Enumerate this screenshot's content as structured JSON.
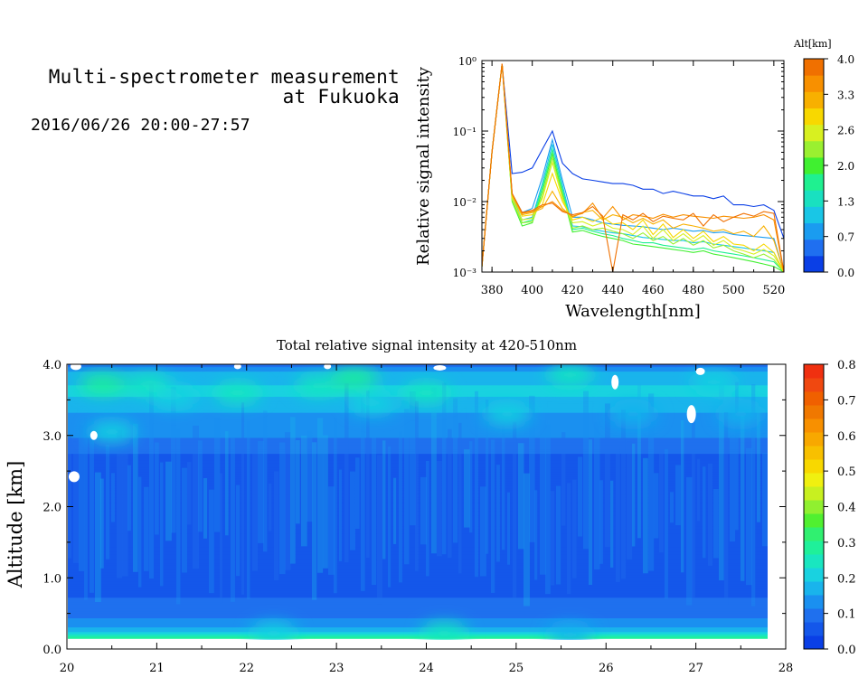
{
  "header": {
    "title_line1": "Multi-spectrometer measurement",
    "title_line2": "at Fukuoka",
    "date_range": "2016/06/26 20:00-27:57"
  },
  "chart_data": [
    {
      "type": "line",
      "xlabel": "Wavelength[nm]",
      "ylabel": "Relative signal intensity",
      "xlim": [
        375,
        525
      ],
      "ylim": [
        0.001,
        1
      ],
      "yscale": "log",
      "x_ticks": [
        "380",
        "400",
        "420",
        "440",
        "460",
        "480",
        "500",
        "520"
      ],
      "y_ticks": [
        "10⁻³",
        "10⁻²",
        "10⁻¹",
        "10⁰"
      ],
      "x": [
        375,
        380,
        385,
        390,
        395,
        400,
        405,
        410,
        415,
        420,
        425,
        430,
        435,
        440,
        445,
        450,
        455,
        460,
        465,
        470,
        475,
        480,
        485,
        490,
        495,
        500,
        505,
        510,
        515,
        520,
        525
      ],
      "colorbar": {
        "title": "Alt[km]",
        "ticks": [
          "0.0",
          "0.7",
          "1.3",
          "2.0",
          "2.6",
          "3.3",
          "4.0"
        ],
        "colors": [
          "#0a3fe6",
          "#1f6ff0",
          "#1a9cf0",
          "#19c6e6",
          "#19e0c0",
          "#1ff090",
          "#40f030",
          "#9af030",
          "#d8f020",
          "#f8d800",
          "#f8b000",
          "#f89000",
          "#f07000"
        ]
      },
      "series": [
        {
          "color": "#0a3fe6",
          "values": [
            0.0012,
            0.05,
            0.9,
            0.025,
            0.026,
            0.03,
            0.055,
            0.1,
            0.035,
            0.025,
            0.021,
            0.02,
            0.019,
            0.018,
            0.018,
            0.017,
            0.015,
            0.015,
            0.013,
            0.014,
            0.013,
            0.012,
            0.012,
            0.011,
            0.012,
            0.009,
            0.009,
            0.0085,
            0.009,
            0.0075,
            0.003
          ]
        },
        {
          "color": "#1a9cf0",
          "values": [
            0.0012,
            0.05,
            0.9,
            0.013,
            0.007,
            0.008,
            0.022,
            0.075,
            0.02,
            0.006,
            0.006,
            0.0055,
            0.005,
            0.0048,
            0.0046,
            0.0045,
            0.0044,
            0.0042,
            0.004,
            0.0042,
            0.004,
            0.0038,
            0.0039,
            0.0036,
            0.0037,
            0.0034,
            0.0033,
            0.0032,
            0.0031,
            0.003,
            0.001
          ]
        },
        {
          "color": "#19c6e6",
          "values": [
            0.0012,
            0.05,
            0.9,
            0.012,
            0.0055,
            0.006,
            0.018,
            0.065,
            0.017,
            0.0045,
            0.0044,
            0.004,
            0.0038,
            0.0036,
            0.0035,
            0.0033,
            0.0031,
            0.003,
            0.0029,
            0.0028,
            0.0028,
            0.0026,
            0.0027,
            0.0025,
            0.0024,
            0.0023,
            0.0022,
            0.0021,
            0.002,
            0.0019,
            0.001
          ]
        },
        {
          "color": "#1ff090",
          "values": [
            0.0012,
            0.05,
            0.9,
            0.011,
            0.005,
            0.0055,
            0.016,
            0.055,
            0.015,
            0.004,
            0.0042,
            0.0038,
            0.0035,
            0.0033,
            0.003,
            0.0028,
            0.0026,
            0.0026,
            0.0024,
            0.0023,
            0.0022,
            0.0021,
            0.0022,
            0.002,
            0.0019,
            0.0018,
            0.0017,
            0.0016,
            0.0015,
            0.0014,
            0.001
          ]
        },
        {
          "color": "#40f030",
          "values": [
            0.0012,
            0.05,
            0.9,
            0.01,
            0.0045,
            0.005,
            0.014,
            0.048,
            0.013,
            0.0037,
            0.0039,
            0.0035,
            0.0032,
            0.003,
            0.0028,
            0.0025,
            0.0024,
            0.0023,
            0.0022,
            0.0021,
            0.002,
            0.0019,
            0.002,
            0.0018,
            0.0017,
            0.0016,
            0.0015,
            0.0014,
            0.0013,
            0.0012,
            0.001
          ]
        },
        {
          "color": "#9af030",
          "values": [
            0.0012,
            0.05,
            0.9,
            0.0105,
            0.005,
            0.0052,
            0.012,
            0.042,
            0.012,
            0.0042,
            0.0045,
            0.004,
            0.0042,
            0.0038,
            0.0035,
            0.003,
            0.0036,
            0.0028,
            0.0032,
            0.0025,
            0.003,
            0.0024,
            0.0028,
            0.0022,
            0.0024,
            0.002,
            0.0018,
            0.0016,
            0.0018,
            0.0015,
            0.001
          ]
        },
        {
          "color": "#d8f020",
          "values": [
            0.0012,
            0.05,
            0.9,
            0.011,
            0.0055,
            0.0058,
            0.011,
            0.036,
            0.011,
            0.005,
            0.0052,
            0.0045,
            0.005,
            0.0042,
            0.004,
            0.0034,
            0.0045,
            0.003,
            0.004,
            0.0028,
            0.0035,
            0.0027,
            0.0033,
            0.0024,
            0.0028,
            0.0022,
            0.002,
            0.0018,
            0.0021,
            0.0017,
            0.001
          ]
        },
        {
          "color": "#f8d800",
          "values": [
            0.0012,
            0.05,
            0.9,
            0.012,
            0.0062,
            0.0065,
            0.009,
            0.025,
            0.01,
            0.0055,
            0.006,
            0.0052,
            0.006,
            0.0048,
            0.005,
            0.004,
            0.0055,
            0.0034,
            0.0048,
            0.0031,
            0.004,
            0.003,
            0.0038,
            0.0027,
            0.0032,
            0.0025,
            0.0024,
            0.002,
            0.0025,
            0.0019,
            0.001
          ]
        },
        {
          "color": "#f8b000",
          "values": [
            0.0012,
            0.05,
            0.9,
            0.0125,
            0.0065,
            0.007,
            0.008,
            0.014,
            0.008,
            0.006,
            0.007,
            0.0075,
            0.0055,
            0.0065,
            0.006,
            0.005,
            0.0058,
            0.0048,
            0.0055,
            0.0042,
            0.0048,
            0.0045,
            0.0042,
            0.0038,
            0.004,
            0.0035,
            0.0038,
            0.0032,
            0.0045,
            0.0028,
            0.001
          ]
        },
        {
          "color": "#f89000",
          "values": [
            0.0012,
            0.05,
            0.9,
            0.013,
            0.0068,
            0.0072,
            0.0085,
            0.01,
            0.0075,
            0.0062,
            0.0068,
            0.0095,
            0.0058,
            0.0085,
            0.0055,
            0.0065,
            0.0062,
            0.0058,
            0.0066,
            0.006,
            0.0065,
            0.0062,
            0.006,
            0.0058,
            0.0062,
            0.006,
            0.0058,
            0.006,
            0.0065,
            0.0055,
            0.001
          ]
        },
        {
          "color": "#f07000",
          "values": [
            0.0012,
            0.05,
            0.9,
            0.013,
            0.007,
            0.0075,
            0.009,
            0.0095,
            0.0072,
            0.0065,
            0.007,
            0.0085,
            0.0062,
            0.001,
            0.0065,
            0.0055,
            0.0068,
            0.0052,
            0.0062,
            0.0058,
            0.0055,
            0.0068,
            0.0045,
            0.0065,
            0.0052,
            0.006,
            0.0068,
            0.0062,
            0.0072,
            0.0068,
            0.001
          ]
        }
      ]
    },
    {
      "type": "heatmap",
      "title": "Total relative signal intensity at 420-510nm",
      "xlabel": "",
      "ylabel": "Altitude [km]",
      "xlim": [
        20,
        28
      ],
      "ylim": [
        0,
        4
      ],
      "x_ticks": [
        "20",
        "21",
        "22",
        "23",
        "24",
        "25",
        "26",
        "27",
        "28"
      ],
      "y_ticks": [
        "0.0",
        "1.0",
        "2.0",
        "3.0",
        "4.0"
      ],
      "data_extent": {
        "x": [
          20,
          27.8
        ],
        "y": [
          0.15,
          4.0
        ]
      },
      "colorbar": {
        "ticks": [
          "0.0",
          "0.1",
          "0.2",
          "0.3",
          "0.4",
          "0.5",
          "0.6",
          "0.7",
          "0.8"
        ],
        "range": [
          0,
          0.8
        ],
        "colors": [
          "#0a3fe6",
          "#1457ea",
          "#1f70ee",
          "#1a90f0",
          "#19b4ec",
          "#19d2e0",
          "#19e6c0",
          "#1ff09a",
          "#30f070",
          "#50f030",
          "#90f030",
          "#c8f020",
          "#f0f010",
          "#f8d800",
          "#f8c000",
          "#f8a800",
          "#f89000",
          "#f07800",
          "#f06000",
          "#f04810",
          "#f03010"
        ]
      },
      "altitude_profile": {
        "altitude_km": [
          0.15,
          0.25,
          0.4,
          0.6,
          0.9,
          1.3,
          1.8,
          2.3,
          2.7,
          3.0,
          3.3,
          3.6,
          3.85,
          4.0
        ],
        "intensity": [
          0.3,
          0.18,
          0.12,
          0.09,
          0.06,
          0.045,
          0.04,
          0.045,
          0.07,
          0.12,
          0.15,
          0.2,
          0.18,
          0.1
        ]
      },
      "hotspots": [
        {
          "t": 20.4,
          "alt": 3.72,
          "value": 0.27
        },
        {
          "t": 20.9,
          "alt": 3.72,
          "value": 0.25
        },
        {
          "t": 20.5,
          "alt": 3.05,
          "value": 0.22
        },
        {
          "t": 21.9,
          "alt": 3.6,
          "value": 0.25
        },
        {
          "t": 21.2,
          "alt": 3.55,
          "value": 0.22
        },
        {
          "t": 22.8,
          "alt": 3.7,
          "value": 0.26
        },
        {
          "t": 23.2,
          "alt": 3.8,
          "value": 0.27
        },
        {
          "t": 23.4,
          "alt": 3.45,
          "value": 0.22
        },
        {
          "t": 24.0,
          "alt": 3.6,
          "value": 0.24
        },
        {
          "t": 24.9,
          "alt": 3.3,
          "value": 0.2
        },
        {
          "t": 25.6,
          "alt": 3.85,
          "value": 0.24
        },
        {
          "t": 26.3,
          "alt": 3.3,
          "value": 0.18
        },
        {
          "t": 27.2,
          "alt": 3.75,
          "value": 0.22
        },
        {
          "t": 27.5,
          "alt": 3.3,
          "value": 0.18
        },
        {
          "t": 22.3,
          "alt": 0.22,
          "value": 0.22
        },
        {
          "t": 24.2,
          "alt": 0.22,
          "value": 0.24
        },
        {
          "t": 25.6,
          "alt": 0.2,
          "value": 0.18
        }
      ]
    }
  ]
}
